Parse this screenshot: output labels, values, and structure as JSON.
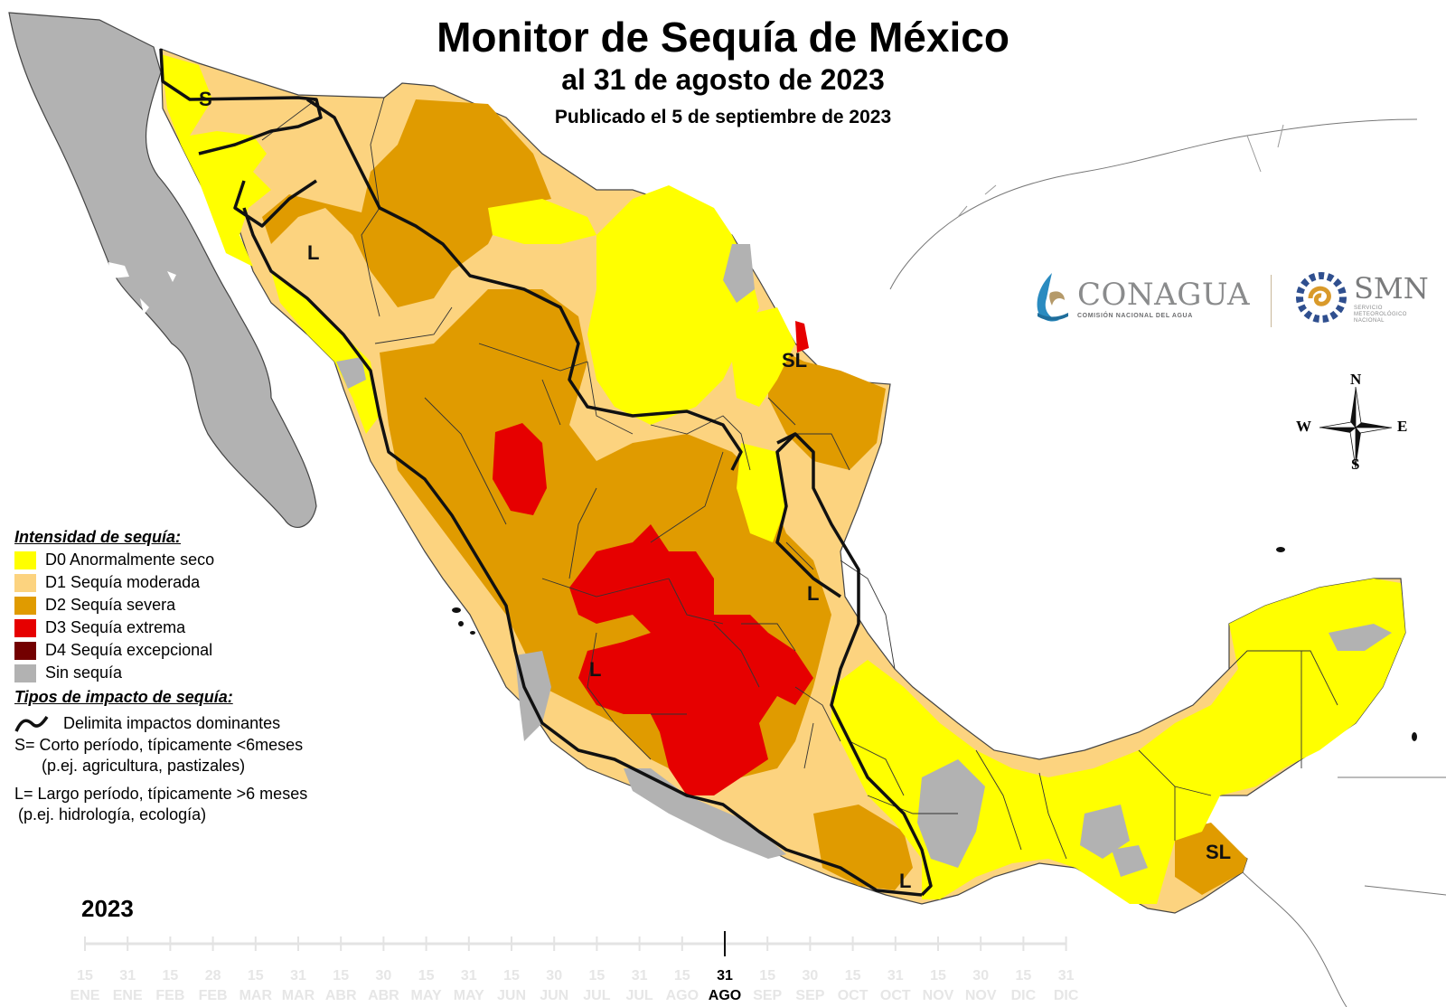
{
  "title": "Monitor de Sequía de México",
  "subtitle": "al 31 de agosto de 2023",
  "published": "Publicado el 5 de septiembre de 2023",
  "legend": {
    "heading": "Intensidad de sequía:",
    "items": [
      {
        "label": "D0 Anormalmente seco",
        "color": "#ffff00"
      },
      {
        "label": "D1 Sequía moderada",
        "color": "#fcd37f"
      },
      {
        "label": "D2 Sequía severa",
        "color": "#e09b00"
      },
      {
        "label": "D3 Sequía extrema",
        "color": "#e60000"
      },
      {
        "label": "D4 Sequía excepcional",
        "color": "#730000"
      },
      {
        "label": "Sin sequía",
        "color": "#b2b2b2"
      }
    ],
    "impacts_heading": "Tipos de impacto de sequía:",
    "impact_line": "Delimita impactos dominantes",
    "short_line1": "S= Corto período, típicamente <6meses",
    "short_line2": "(p.ej. agricultura, pastizales)",
    "long_line1": "L= Largo período, típicamente >6 meses",
    "long_line2": "(p.ej. hidrología, ecología)"
  },
  "map_labels": [
    "S",
    "L",
    "SL",
    "L",
    "L",
    "L",
    "SL"
  ],
  "logos": {
    "conagua": "CONAGUA",
    "conagua_sub": "COMISIÓN NACIONAL DEL AGUA",
    "smn": "SMN",
    "smn_sub": [
      "SERVICIO",
      "METEOROLÓGICO",
      "NACIONAL"
    ]
  },
  "compass": {
    "n": "N",
    "s": "S",
    "e": "E",
    "w": "W"
  },
  "timeline": {
    "year": "2023",
    "days": [
      "15",
      "31",
      "15",
      "28",
      "15",
      "31",
      "15",
      "30",
      "15",
      "31",
      "15",
      "30",
      "15",
      "31",
      "15",
      "31",
      "15",
      "30",
      "15",
      "31",
      "15",
      "30",
      "15",
      "31"
    ],
    "months": [
      "ENE",
      "ENE",
      "FEB",
      "FEB",
      "MAR",
      "MAR",
      "ABR",
      "ABR",
      "MAY",
      "MAY",
      "JUN",
      "JUN",
      "JUL",
      "JUL",
      "AGO",
      "AGO",
      "SEP",
      "SEP",
      "OCT",
      "OCT",
      "NOV",
      "NOV",
      "DIC",
      "DIC"
    ],
    "current_index": 15
  }
}
